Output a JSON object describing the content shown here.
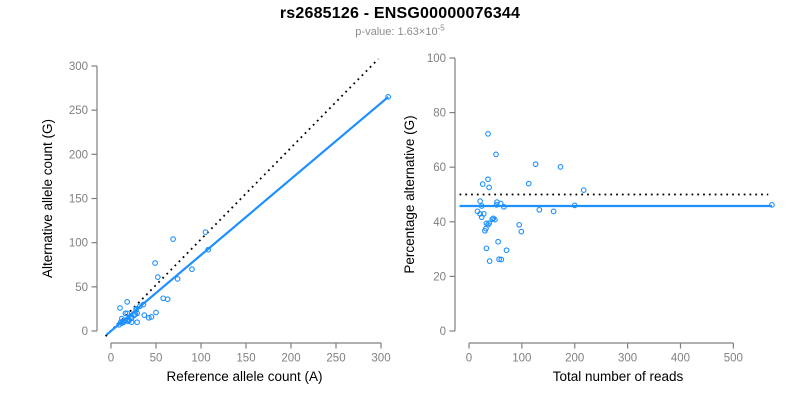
{
  "header": {
    "title": "rs2685126 - ENSG00000076344",
    "subtitle_prefix": "p-value: ",
    "subtitle_value": "1.63×10",
    "subtitle_exponent": "-5"
  },
  "colors": {
    "accent_blue": "#1E90FF",
    "dotted_black": "#000000",
    "axis_gray": "#808080",
    "tick_text_gray": "#808080",
    "label_black": "#000000",
    "subtitle_gray": "#8c8c8c",
    "background": "#ffffff"
  },
  "chart_data": [
    {
      "type": "scatter",
      "panel": "left",
      "xlabel": "Reference allele count (A)",
      "ylabel": "Alternative allele count (G)",
      "xticks": [
        0,
        50,
        100,
        150,
        200,
        250,
        300
      ],
      "yticks": [
        0,
        50,
        100,
        150,
        200,
        250,
        300
      ],
      "xlim": [
        -12,
        320
      ],
      "ylim": [
        -12,
        312
      ],
      "grid": false,
      "points": [
        [
          9,
          7
        ],
        [
          11,
          10
        ],
        [
          12,
          9
        ],
        [
          14,
          10
        ],
        [
          13,
          11
        ],
        [
          12,
          14
        ],
        [
          16,
          12
        ],
        [
          19,
          11
        ],
        [
          20,
          12
        ],
        [
          20,
          13
        ],
        [
          23,
          10
        ],
        [
          10,
          26
        ],
        [
          16,
          20
        ],
        [
          22,
          14
        ],
        [
          18,
          20
        ],
        [
          23,
          15
        ],
        [
          29,
          10
        ],
        [
          26,
          18
        ],
        [
          27,
          19
        ],
        [
          29,
          20
        ],
        [
          18,
          33
        ],
        [
          28,
          24
        ],
        [
          28,
          25
        ],
        [
          37,
          18
        ],
        [
          42,
          15
        ],
        [
          32,
          28
        ],
        [
          45,
          16
        ],
        [
          36,
          30
        ],
        [
          50,
          21
        ],
        [
          58,
          37
        ],
        [
          63,
          36
        ],
        [
          52,
          61
        ],
        [
          49,
          77
        ],
        [
          74,
          59
        ],
        [
          90,
          70
        ],
        [
          69,
          104
        ],
        [
          108,
          92
        ],
        [
          105,
          112
        ],
        [
          308,
          265
        ]
      ],
      "lines": [
        {
          "name": "identity-line",
          "style": "dotted",
          "color": "#000000",
          "x1": -6,
          "y1": -6,
          "x2": 297,
          "y2": 308
        },
        {
          "name": "fit-line",
          "style": "solid",
          "color": "#1E90FF",
          "x1": -5,
          "y1": -4.3,
          "x2": 308,
          "y2": 265
        }
      ]
    },
    {
      "type": "scatter",
      "panel": "right",
      "xlabel": "Total number of reads",
      "ylabel": "Percentage alternative (G)",
      "xticks": [
        0,
        100,
        200,
        300,
        400,
        500
      ],
      "yticks": [
        0,
        20,
        40,
        60,
        80,
        100
      ],
      "xlim": [
        -23,
        596
      ],
      "ylim": [
        -4,
        104
      ],
      "grid": false,
      "points": [
        [
          16,
          43.8
        ],
        [
          21,
          47.6
        ],
        [
          21,
          42.9
        ],
        [
          24,
          41.7
        ],
        [
          24,
          45.8
        ],
        [
          26,
          53.8
        ],
        [
          28,
          42.9
        ],
        [
          30,
          36.7
        ],
        [
          32,
          37.5
        ],
        [
          33,
          39.4
        ],
        [
          33,
          30.3
        ],
        [
          36,
          72.2
        ],
        [
          36,
          55.6
        ],
        [
          36,
          38.9
        ],
        [
          38,
          52.6
        ],
        [
          38,
          39.5
        ],
        [
          39,
          25.6
        ],
        [
          44,
          40.9
        ],
        [
          46,
          41.3
        ],
        [
          49,
          40.8
        ],
        [
          51,
          64.7
        ],
        [
          52,
          46.2
        ],
        [
          53,
          47.2
        ],
        [
          55,
          32.7
        ],
        [
          57,
          26.3
        ],
        [
          60,
          46.7
        ],
        [
          61,
          26.2
        ],
        [
          66,
          45.5
        ],
        [
          71,
          29.6
        ],
        [
          95,
          38.9
        ],
        [
          99,
          36.4
        ],
        [
          113,
          54.0
        ],
        [
          126,
          61.1
        ],
        [
          133,
          44.4
        ],
        [
          160,
          43.8
        ],
        [
          173,
          60.1
        ],
        [
          200,
          46.0
        ],
        [
          217,
          51.6
        ],
        [
          573,
          46.2
        ]
      ],
      "lines": [
        {
          "name": "expected-50pct-line",
          "style": "dotted",
          "color": "#000000",
          "x1": -18,
          "y1": 50,
          "x2": 566,
          "y2": 50
        },
        {
          "name": "mean-percentage-line",
          "style": "solid",
          "color": "#1E90FF",
          "x1": -18,
          "y1": 45.8,
          "x2": 573,
          "y2": 45.8
        }
      ]
    }
  ]
}
